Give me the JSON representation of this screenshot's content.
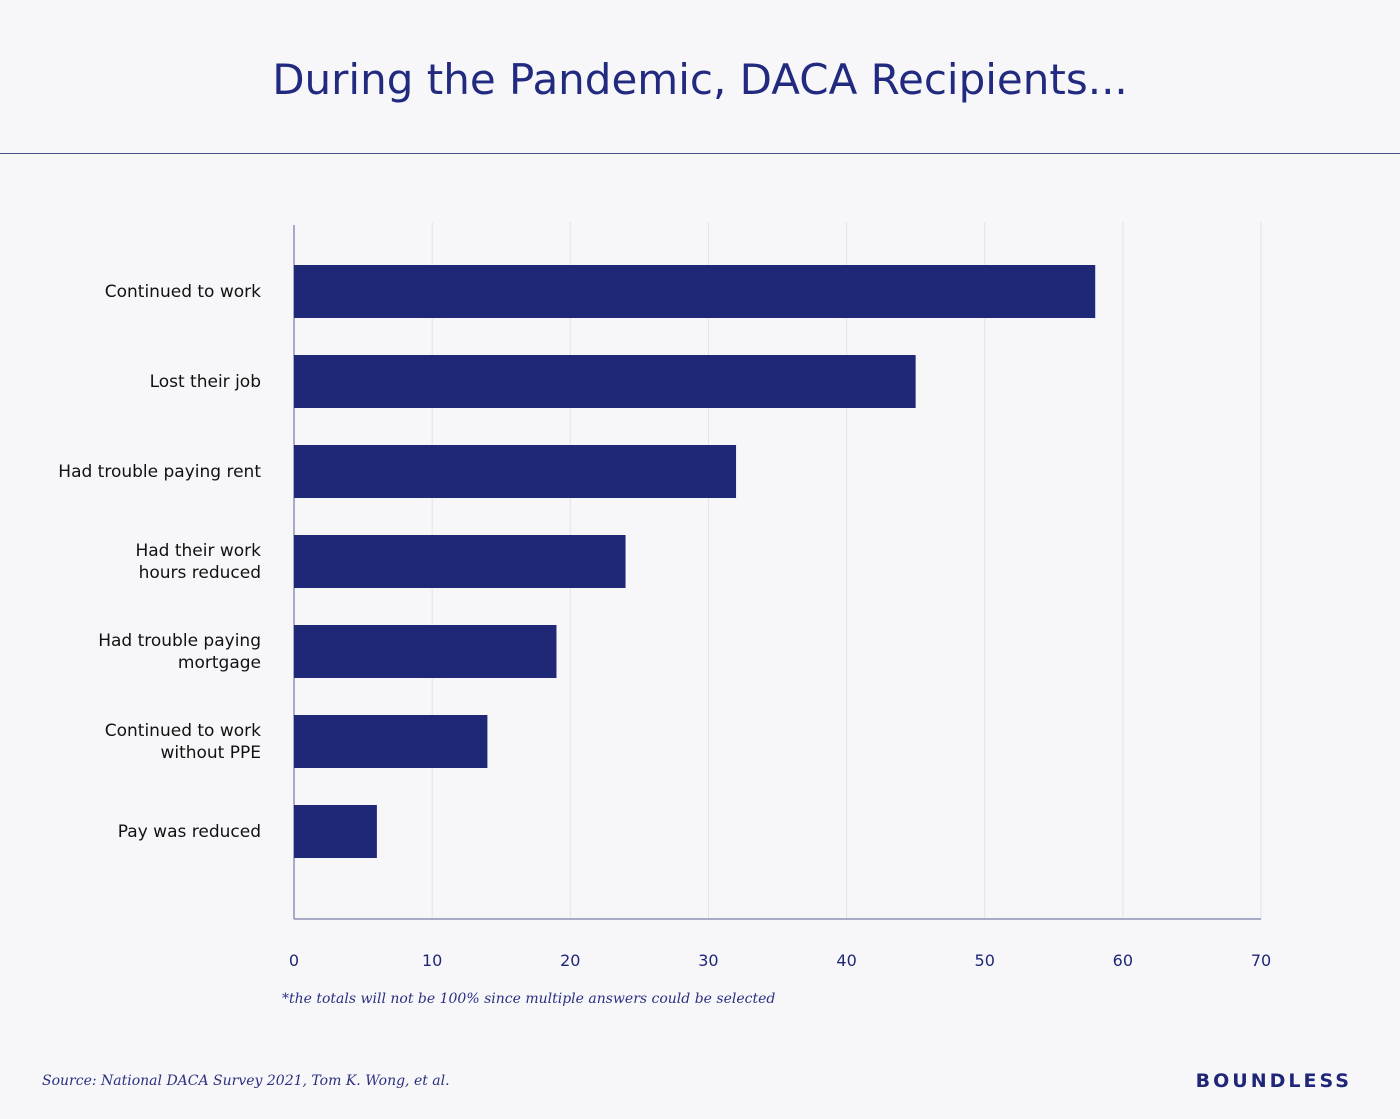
{
  "chart_data": {
    "type": "bar",
    "orientation": "horizontal",
    "title": "During the Pandemic, DACA Recipients...",
    "categories": [
      [
        "Continued to work"
      ],
      [
        "Lost their job"
      ],
      [
        "Had trouble paying rent"
      ],
      [
        "Had their work",
        "hours reduced"
      ],
      [
        "Had trouble paying",
        "mortgage"
      ],
      [
        "Continued to work",
        "without PPE"
      ],
      [
        "Pay was reduced"
      ]
    ],
    "values": [
      58,
      45,
      32,
      24,
      19,
      14,
      6
    ],
    "xlim": [
      0,
      70
    ],
    "xticks": [
      "0",
      "10",
      "20",
      "30",
      "40",
      "50",
      "60",
      "70"
    ],
    "grid": true,
    "bar_color": "#1f2877",
    "xlabel": "",
    "ylabel": ""
  },
  "note": "*the totals will not be 100% since multiple answers could be selected",
  "source": "Source: National DACA Survey 2021, Tom K. Wong, et al.",
  "brand": "BOUNDLESS"
}
